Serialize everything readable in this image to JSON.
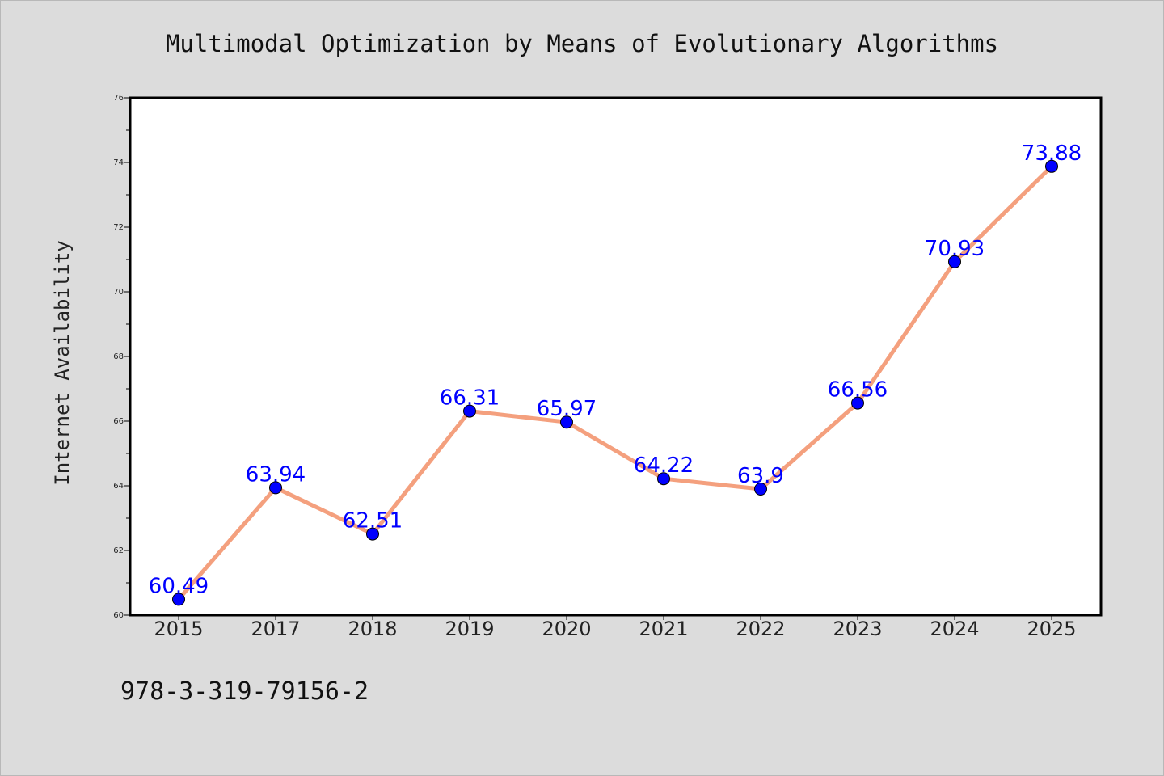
{
  "chart_data": {
    "type": "line",
    "title": "Multimodal Optimization by Means of Evolutionary Algorithms",
    "xlabel": "",
    "ylabel": "Internet Availability",
    "categories": [
      "2015",
      "2017",
      "2018",
      "2019",
      "2020",
      "2021",
      "2022",
      "2023",
      "2024",
      "2025"
    ],
    "series": [
      {
        "values": [
          60.49,
          63.94,
          62.51,
          66.31,
          65.97,
          64.22,
          63.9,
          66.56,
          70.93,
          73.88
        ],
        "data_labels": [
          "60.49",
          "63.94",
          "62.51",
          "66.31",
          "65.97",
          "64.22",
          "63.9",
          "66.56",
          "70.93",
          "73.88"
        ],
        "line_color": "#f4a07e",
        "marker_color": "#0000ff"
      }
    ],
    "ylim": [
      60,
      76
    ],
    "yticks": [
      "60",
      "62",
      "64",
      "66",
      "68",
      "70",
      "72",
      "74",
      "76"
    ],
    "grid": false,
    "legend": "none",
    "label_color": "#0000ff"
  },
  "footer": {
    "isbn": "978-3-319-79156-2"
  }
}
